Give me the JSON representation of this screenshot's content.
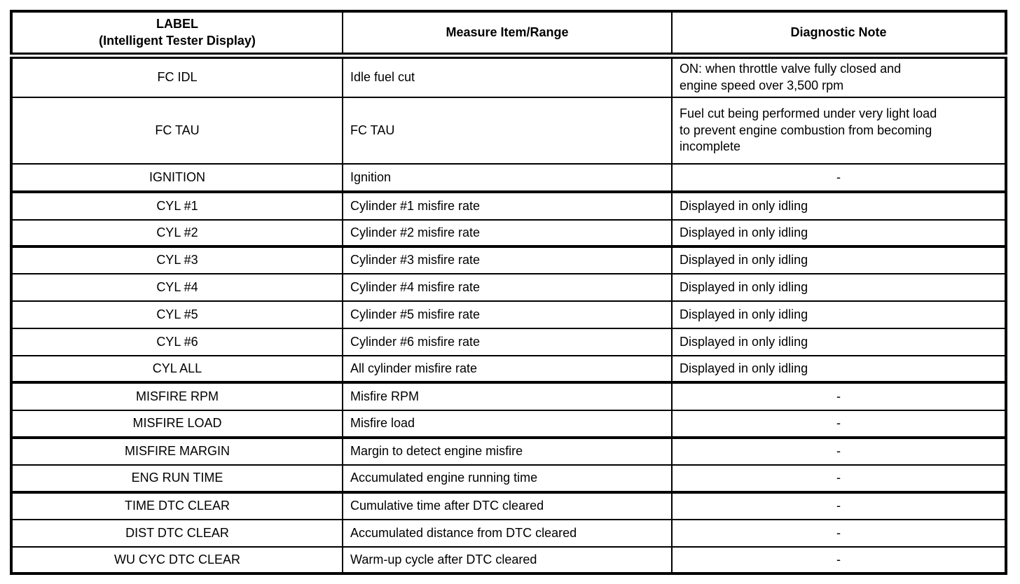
{
  "table": {
    "columns": [
      {
        "label": "LABEL\n(Intelligent Tester Display)"
      },
      {
        "label": "Measure Item/Range"
      },
      {
        "label": "Diagnostic Note"
      }
    ],
    "rows": [
      {
        "label": "FC IDL",
        "item": "Idle fuel cut",
        "note": "ON: when throttle valve fully closed and\nengine speed over 3,500 rpm"
      },
      {
        "label": "FC TAU",
        "item": "FC TAU",
        "note": "Fuel cut being performed under very light load\nto prevent engine combustion from becoming\nincomplete"
      },
      {
        "label": "IGNITION",
        "item": "Ignition",
        "note": "-"
      },
      {
        "label": "CYL #1",
        "item": "Cylinder #1 misfire rate",
        "note": "Displayed in only idling"
      },
      {
        "label": "CYL #2",
        "item": "Cylinder #2 misfire rate",
        "note": "Displayed in only idling"
      },
      {
        "label": "CYL #3",
        "item": "Cylinder #3 misfire rate",
        "note": "Displayed in only idling"
      },
      {
        "label": "CYL #4",
        "item": "Cylinder #4 misfire rate",
        "note": "Displayed in only idling"
      },
      {
        "label": "CYL #5",
        "item": "Cylinder #5 misfire rate",
        "note": "Displayed in only idling"
      },
      {
        "label": "CYL #6",
        "item": "Cylinder #6 misfire rate",
        "note": "Displayed in only idling"
      },
      {
        "label": "CYL ALL",
        "item": "All cylinder misfire rate",
        "note": "Displayed in only idling"
      },
      {
        "label": "MISFIRE RPM",
        "item": "Misfire RPM",
        "note": "-"
      },
      {
        "label": "MISFIRE LOAD",
        "item": "Misfire load",
        "note": "-"
      },
      {
        "label": "MISFIRE MARGIN",
        "item": "Margin to detect engine misfire",
        "note": "-"
      },
      {
        "label": "ENG RUN TIME",
        "item": "Accumulated engine running time",
        "note": "-"
      },
      {
        "label": "TIME DTC CLEAR",
        "item": "Cumulative time after DTC cleared",
        "note": "-"
      },
      {
        "label": "DIST DTC CLEAR",
        "item": "Accumulated distance from DTC cleared",
        "note": "-"
      },
      {
        "label": "WU CYC DTC CLEAR",
        "item": "Warm-up cycle after DTC cleared",
        "note": "-"
      }
    ]
  },
  "colors": {
    "border": "#000000",
    "background": "#ffffff",
    "text": "#000000"
  }
}
